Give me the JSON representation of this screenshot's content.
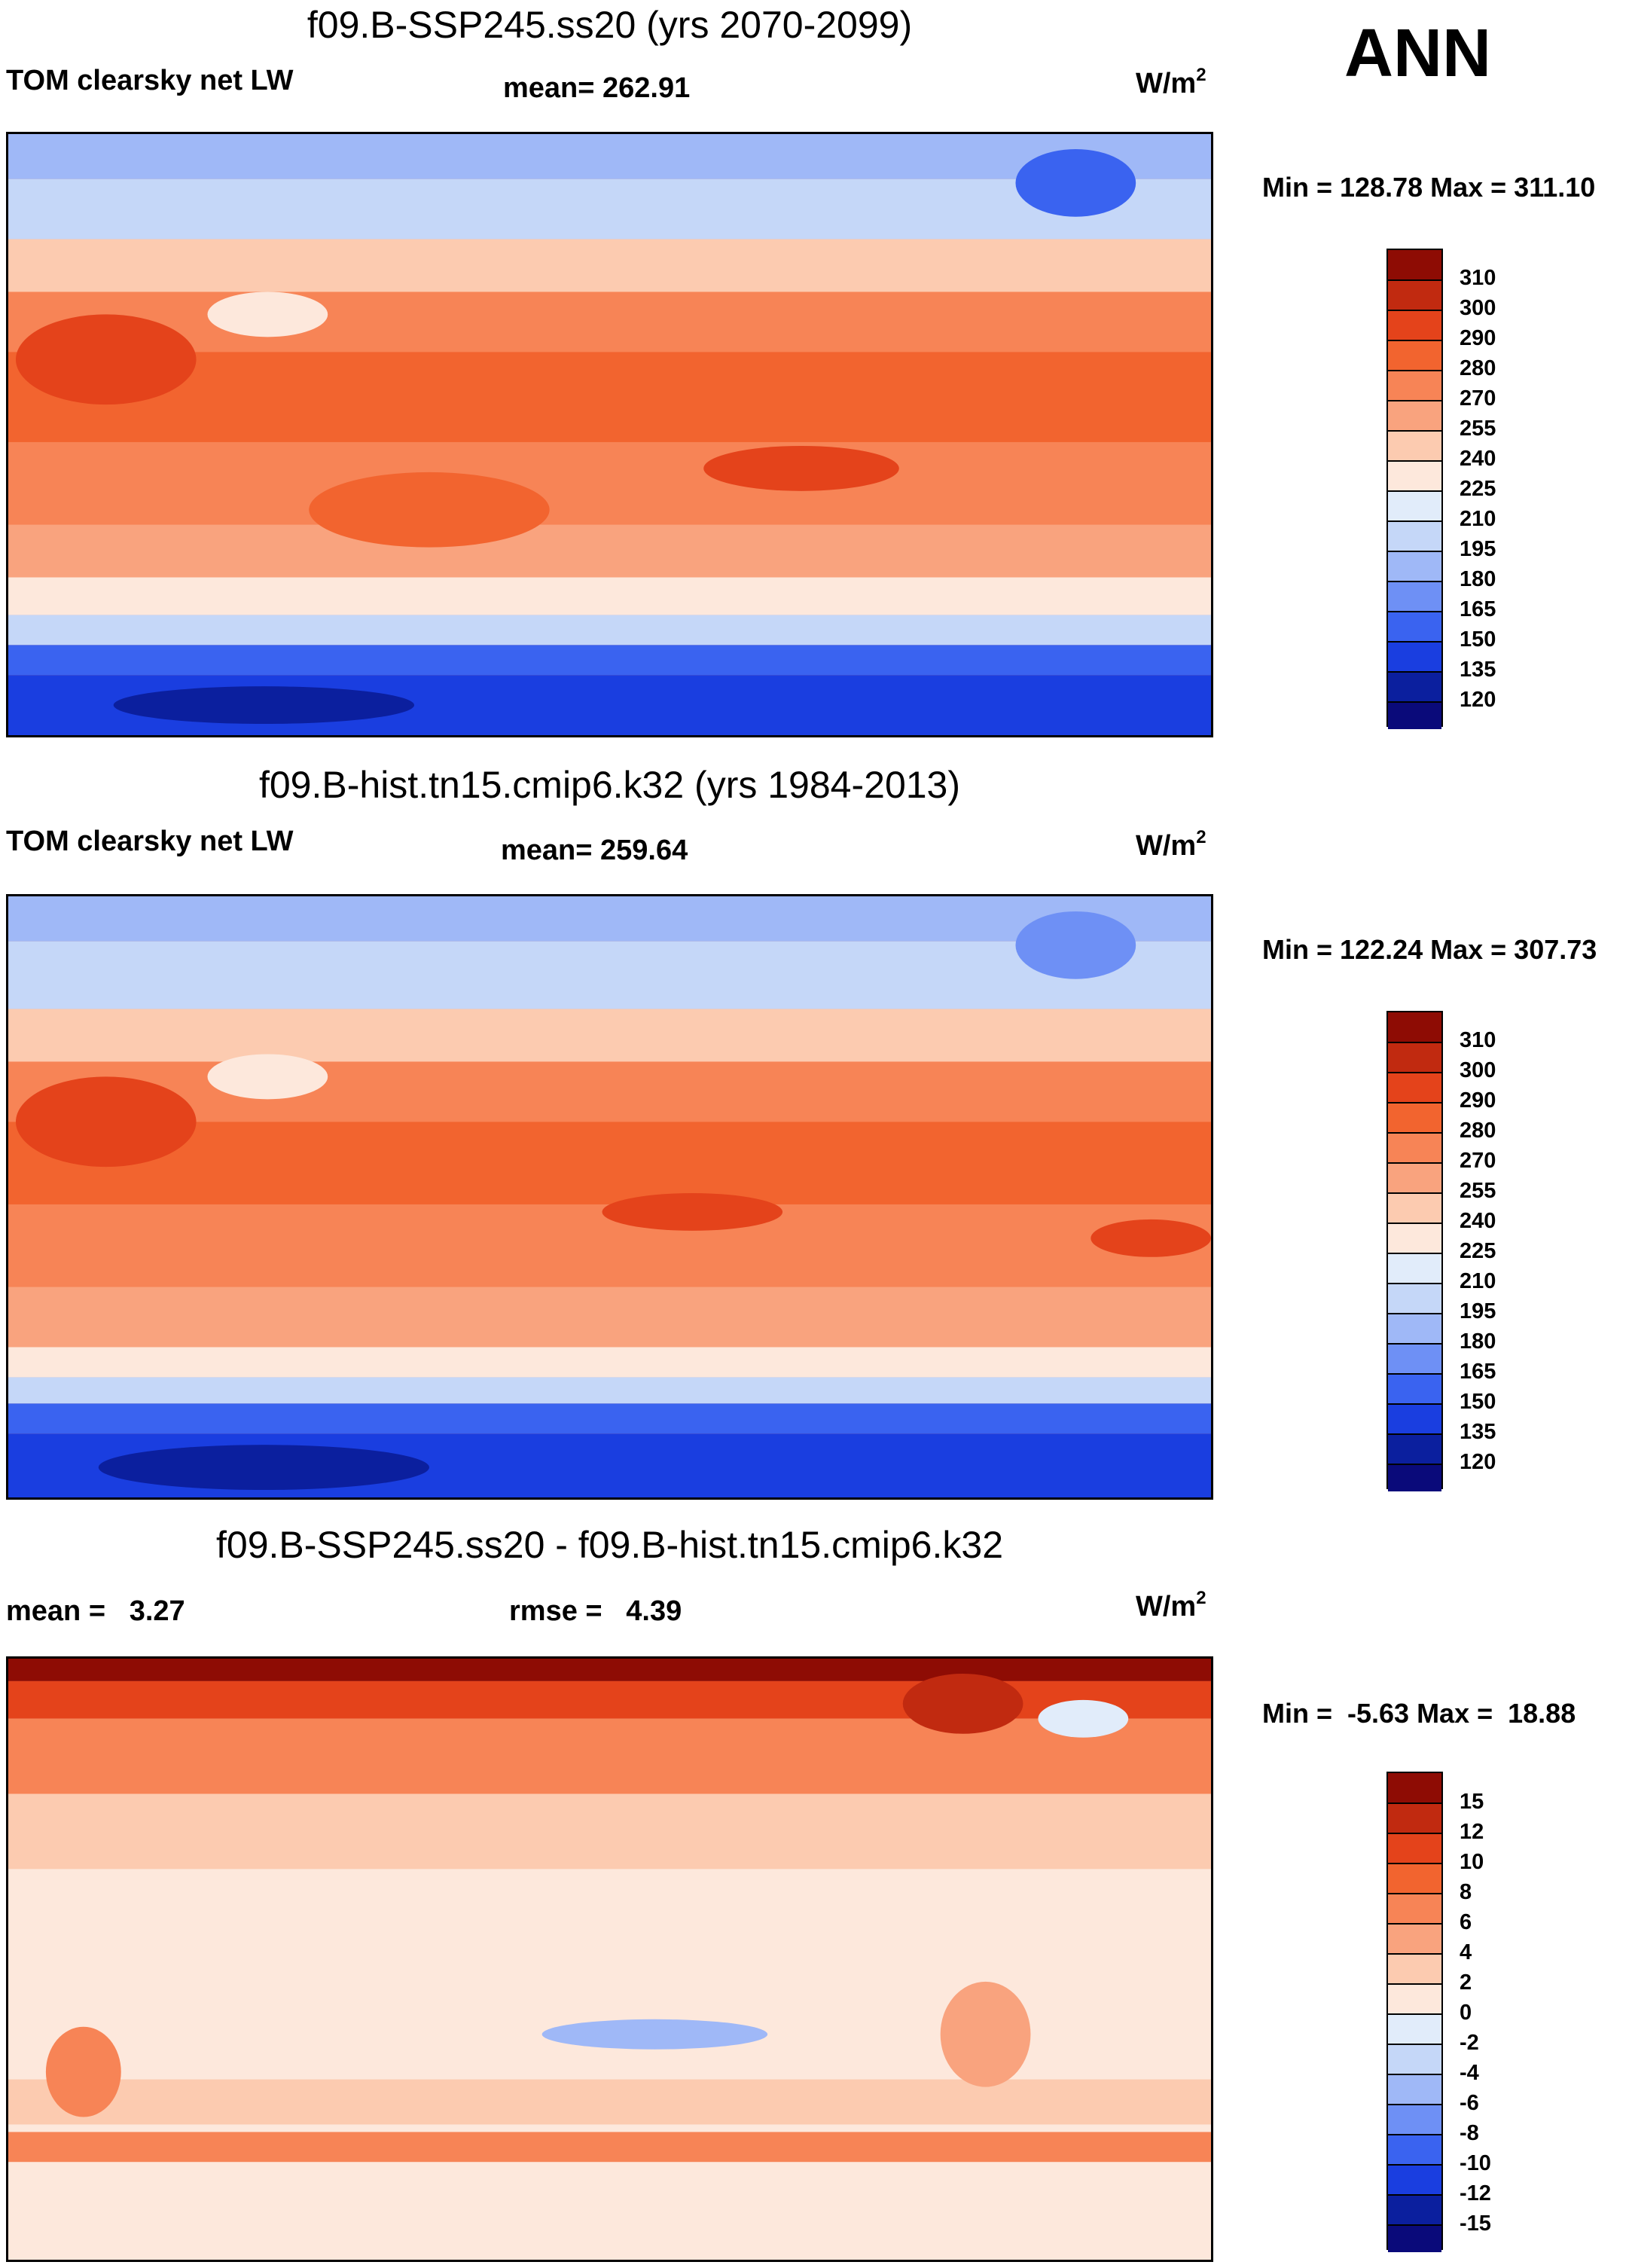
{
  "season": "ANN",
  "units_base": "W/m",
  "units_exp": "2",
  "panels": [
    {
      "title": "f09.B-SSP245.ss20 (yrs 2070-2099)",
      "left_label": "TOM clearsky net LW",
      "center_label": "mean= 262.91",
      "minmax": "Min = 128.78 Max = 311.10"
    },
    {
      "title": "f09.B-hist.tn15.cmip6.k32 (yrs 1984-2013)",
      "left_label": "TOM clearsky net LW",
      "center_label": "mean= 259.64",
      "minmax": "Min = 122.24 Max = 307.73"
    },
    {
      "title": "f09.B-SSP245.ss20 - f09.B-hist.tn15.cmip6.k32",
      "left_label": "mean =   3.27",
      "center_label": "rmse =   4.39",
      "minmax": "Min =  -5.63 Max =  18.88"
    }
  ],
  "colors": {
    "abs_scale": [
      "#0a0a7a",
      "#0b1f9e",
      "#1a3ee0",
      "#3a63f0",
      "#6e90f5",
      "#9fb8f7",
      "#c5d7f8",
      "#e1ecfa",
      "#fde8dc",
      "#fccbb0",
      "#f9a37e",
      "#f78456",
      "#f2642f",
      "#e4431b",
      "#c12a10",
      "#8e0c04"
    ],
    "diff_scale": [
      "#0a0a7a",
      "#0b1f9e",
      "#1a3ee0",
      "#3a63f0",
      "#6e90f5",
      "#9fb8f7",
      "#c5d7f8",
      "#e1ecfa",
      "#fde8dc",
      "#fccbb0",
      "#f9a37e",
      "#f78456",
      "#f2642f",
      "#e4431b",
      "#c12a10",
      "#8e0c04"
    ]
  },
  "chart_data": [
    {
      "type": "heatmap",
      "title": "f09.B-SSP245.ss20 (yrs 2070-2099)",
      "variable": "TOM clearsky net LW",
      "units": "W/m^2",
      "mean": 262.91,
      "min": 128.78,
      "max": 311.1,
      "colorbar_levels": [
        "310",
        "300",
        "290",
        "280",
        "270",
        "255",
        "240",
        "225",
        "210",
        "195",
        "180",
        "165",
        "150",
        "135",
        "120"
      ]
    },
    {
      "type": "heatmap",
      "title": "f09.B-hist.tn15.cmip6.k32 (yrs 1984-2013)",
      "variable": "TOM clearsky net LW",
      "units": "W/m^2",
      "mean": 259.64,
      "min": 122.24,
      "max": 307.73,
      "colorbar_levels": [
        "310",
        "300",
        "290",
        "280",
        "270",
        "255",
        "240",
        "225",
        "210",
        "195",
        "180",
        "165",
        "150",
        "135",
        "120"
      ]
    },
    {
      "type": "heatmap",
      "title": "f09.B-SSP245.ss20 - f09.B-hist.tn15.cmip6.k32",
      "units": "W/m^2",
      "mean": 3.27,
      "rmse": 4.39,
      "min": -5.63,
      "max": 18.88,
      "colorbar_levels": [
        "15",
        "12",
        "10",
        "8",
        "6",
        "4",
        "2",
        "0",
        "-2",
        "-4",
        "-6",
        "-8",
        "-10",
        "-12",
        "-15"
      ]
    }
  ]
}
